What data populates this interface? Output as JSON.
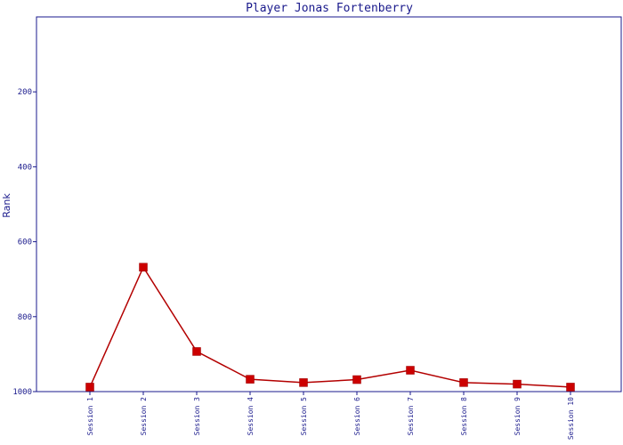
{
  "chart_data": {
    "type": "line",
    "title": "Player Jonas Fortenberry",
    "xlabel": "",
    "ylabel": "Rank",
    "categories": [
      "Session 1",
      "Session 2",
      "Session 3",
      "Session 4",
      "Session 5",
      "Session 6",
      "Session 7",
      "Session 8",
      "Session 9",
      "Session 10"
    ],
    "series": [
      {
        "values": [
          988,
          668,
          893,
          967,
          976,
          968,
          943,
          976,
          980,
          988
        ]
      }
    ],
    "ylim": [
      1000,
      0
    ],
    "y_inverted": true,
    "yticks": [
      200,
      400,
      600,
      800,
      1000
    ],
    "grid": false,
    "legend": "none",
    "colors": {
      "line": "#b30000",
      "marker": "#cc0000",
      "axis": "#1a1a8c",
      "text": "#1a1a8c"
    }
  }
}
